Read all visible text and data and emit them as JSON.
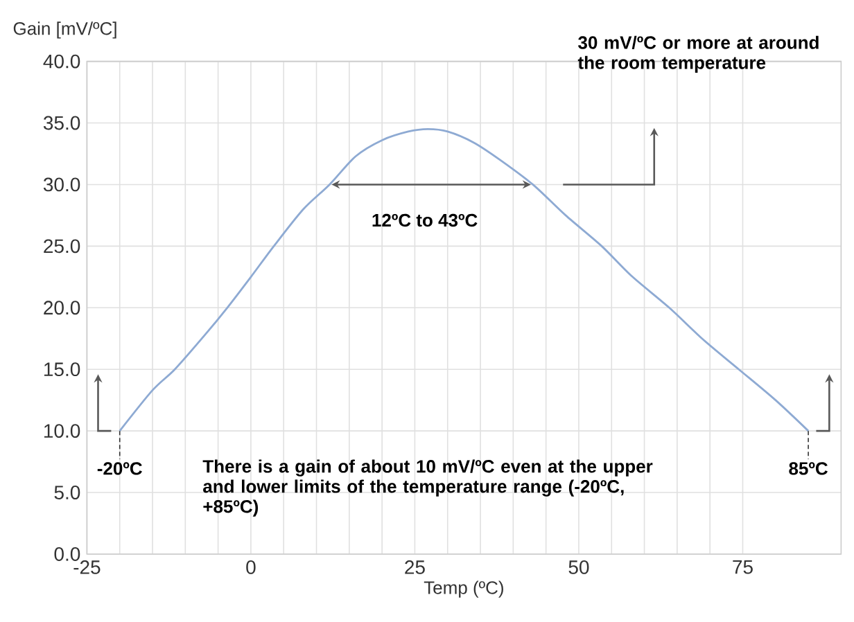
{
  "chart_data": {
    "type": "line",
    "xlabel": "Temp (ºC)",
    "ylabel": "Gain [mV/ºC]",
    "x": [
      -20,
      -15,
      -11.6,
      -7,
      -3.6,
      0,
      3.5,
      8,
      12,
      16,
      20,
      24,
      27,
      30,
      34,
      38,
      43,
      48,
      53.5,
      58,
      63.8,
      69,
      74.4,
      80,
      85
    ],
    "series": [
      {
        "color": "#8eaad3",
        "values": [
          10,
          13.3,
          15,
          17.8,
          20,
          22.5,
          25,
          28,
          30,
          32.3,
          33.6,
          34.3,
          34.5,
          34.3,
          33.4,
          32,
          30,
          27.5,
          25,
          22.6,
          20,
          17.4,
          15,
          12.5,
          10
        ]
      }
    ],
    "xlim": [
      -25,
      90
    ],
    "ylim": [
      0,
      40
    ],
    "xticks": [
      {
        "value": -25,
        "label": "-25"
      },
      0,
      25,
      50,
      75
    ],
    "yticks": [
      {
        "value": 0,
        "label": "0.0"
      },
      {
        "value": 5,
        "label": "5.0"
      },
      {
        "value": 10,
        "label": "10.0"
      },
      {
        "value": 15,
        "label": "15.0"
      },
      {
        "value": 20,
        "label": "20.0"
      },
      {
        "value": 25,
        "label": "25.0"
      },
      {
        "value": 30,
        "label": "30.0"
      },
      {
        "value": 35,
        "label": "35.0"
      },
      {
        "value": 40,
        "label": "40.0"
      }
    ],
    "grid": true,
    "marker": "none",
    "line_style": "solid",
    "annotations": [
      "30 mV/ºC or more at around the room temperature",
      "12ºC to 43ºC",
      "There is a gain of about 10 mV/ºC even at the upper and lower limits of the temperature range (-20ºC, +85ºC)",
      {
        "text": "-20ºC",
        "x": -20,
        "y": 10
      },
      {
        "text": "85ºC",
        "x": 85,
        "y": 10
      }
    ]
  }
}
